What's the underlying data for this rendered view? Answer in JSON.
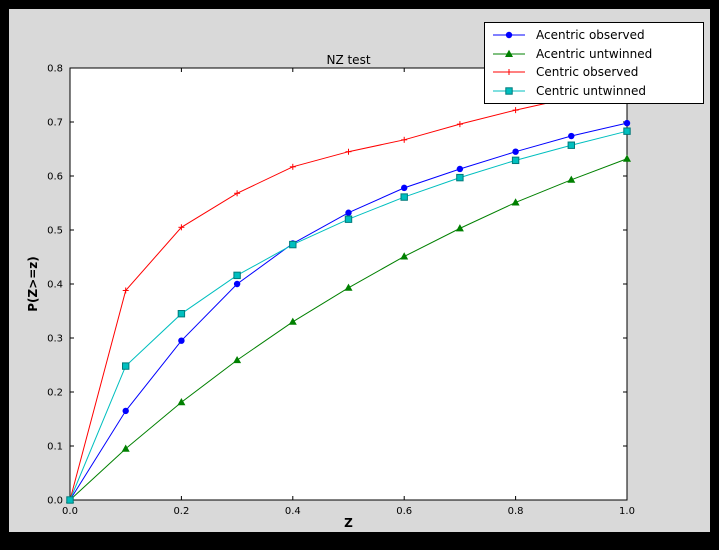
{
  "window": {
    "outer_background": "#000000",
    "figure_background": "#d9d9d9",
    "plot_background": "#ffffff"
  },
  "chart_data": {
    "type": "line",
    "title": "NZ test",
    "xlabel": "Z",
    "ylabel": "P(Z>=z)",
    "xlim": [
      0.0,
      1.0
    ],
    "ylim": [
      0.0,
      0.8
    ],
    "x_ticks": [
      0.0,
      0.2,
      0.4,
      0.6,
      0.8,
      1.0
    ],
    "y_ticks": [
      0.0,
      0.1,
      0.2,
      0.3,
      0.4,
      0.5,
      0.6,
      0.7,
      0.8
    ],
    "grid": false,
    "legend_position": "upper right, partly above axes",
    "x": [
      0.0,
      0.1,
      0.2,
      0.3,
      0.4,
      0.5,
      0.6,
      0.7,
      0.8,
      0.9,
      1.0
    ],
    "series": [
      {
        "name": "Acentric observed",
        "color": "#0000ff",
        "marker": "circle",
        "values": [
          0.0,
          0.165,
          0.295,
          0.4,
          0.475,
          0.532,
          0.578,
          0.613,
          0.645,
          0.674,
          0.698
        ]
      },
      {
        "name": "Acentric untwinned",
        "color": "#008000",
        "marker": "triangle",
        "values": [
          0.0,
          0.095,
          0.181,
          0.259,
          0.33,
          0.393,
          0.451,
          0.503,
          0.551,
          0.593,
          0.632
        ]
      },
      {
        "name": "Centric observed",
        "color": "#ff0000",
        "marker": "plus",
        "values": [
          0.0,
          0.388,
          0.505,
          0.568,
          0.617,
          0.645,
          0.667,
          0.696,
          0.722,
          0.745,
          0.764
        ]
      },
      {
        "name": "Centric untwinned",
        "color": "#00bfbf",
        "marker": "square",
        "marker_edge": "#007a7a",
        "values": [
          0.0,
          0.248,
          0.345,
          0.416,
          0.473,
          0.52,
          0.561,
          0.597,
          0.629,
          0.657,
          0.683
        ]
      }
    ]
  }
}
